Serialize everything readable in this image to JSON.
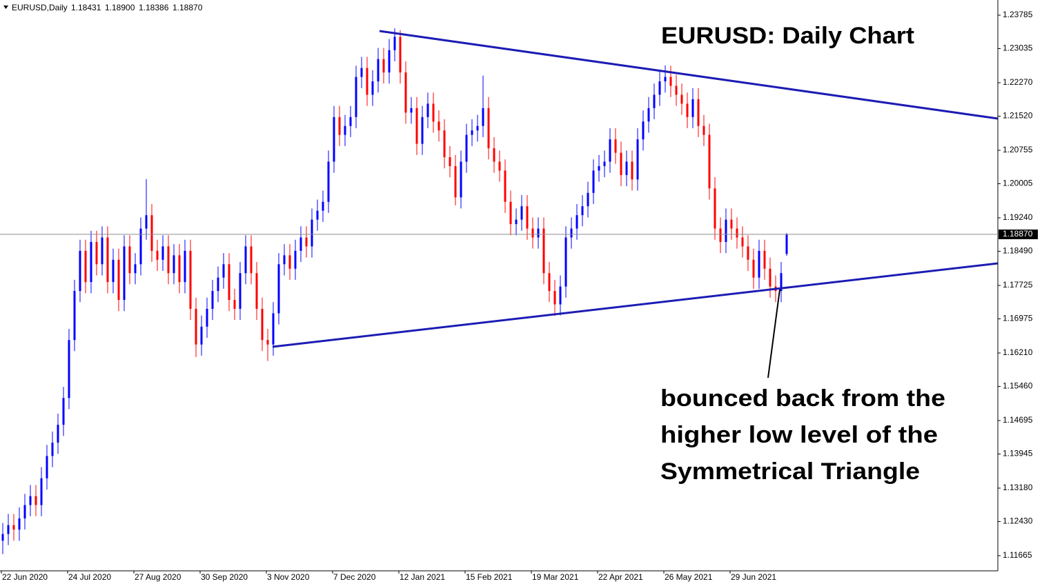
{
  "chart_data": {
    "type": "candlestick",
    "title": "EURUSD: Daily Chart",
    "header": {
      "symbol": "EURUSD,Daily",
      "ohlc_labels": [
        "1.18431",
        "1.18900",
        "1.18386",
        "1.18870"
      ]
    },
    "annotation": [
      "bounced back from the",
      "higher low level of the",
      "Symmetrical Triangle"
    ],
    "up_color": "#0000ff",
    "down_color": "#ff0000",
    "grid": false,
    "categories": [
      "22 Jun 2020",
      null,
      null,
      null,
      null,
      null,
      null,
      null,
      null,
      null,
      null,
      null,
      "24 Jul 2020",
      null,
      null,
      null,
      null,
      null,
      null,
      null,
      null,
      null,
      null,
      null,
      "27 Aug 2020",
      null,
      null,
      null,
      null,
      null,
      null,
      null,
      null,
      null,
      null,
      null,
      "30 Sep 2020",
      null,
      null,
      null,
      null,
      null,
      null,
      null,
      null,
      null,
      null,
      null,
      "3 Nov 2020",
      null,
      null,
      null,
      null,
      null,
      null,
      null,
      null,
      null,
      null,
      null,
      "7 Dec 2020",
      null,
      null,
      null,
      null,
      null,
      null,
      null,
      null,
      null,
      null,
      null,
      "12 Jan 2021",
      null,
      null,
      null,
      null,
      null,
      null,
      null,
      null,
      null,
      null,
      null,
      "15 Feb 2021",
      null,
      null,
      null,
      null,
      null,
      null,
      null,
      null,
      null,
      null,
      null,
      "19 Mar 2021",
      null,
      null,
      null,
      null,
      null,
      null,
      null,
      null,
      null,
      null,
      null,
      "22 Apr 2021",
      null,
      null,
      null,
      null,
      null,
      null,
      null,
      null,
      null,
      null,
      null,
      "26 May 2021",
      null,
      null,
      null,
      null,
      null,
      null,
      null,
      null,
      null,
      null,
      null,
      "29 Jun 2021",
      null,
      null,
      null,
      null,
      null,
      null,
      null,
      null,
      null,
      null
    ],
    "open": [
      1.12,
      1.1215,
      1.1235,
      1.1225,
      1.125,
      1.128,
      1.13,
      1.128,
      1.134,
      1.139,
      1.142,
      1.146,
      1.152,
      1.165,
      1.176,
      1.185,
      1.178,
      1.187,
      1.182,
      1.188,
      1.178,
      1.183,
      1.174,
      1.186,
      1.18,
      1.182,
      1.19,
      1.193,
      1.185,
      1.183,
      1.186,
      1.18,
      1.184,
      1.178,
      1.185,
      1.172,
      1.164,
      1.168,
      1.172,
      1.176,
      1.179,
      1.182,
      1.174,
      1.172,
      1.18,
      1.186,
      1.18,
      1.172,
      1.165,
      1.164,
      1.171,
      1.182,
      1.184,
      1.181,
      1.185,
      1.188,
      1.186,
      1.192,
      1.194,
      1.196,
      1.205,
      1.215,
      1.211,
      1.213,
      1.215,
      1.224,
      1.226,
      1.22,
      1.223,
      1.228,
      1.225,
      1.23,
      1.233,
      1.225,
      1.216,
      1.217,
      1.209,
      1.215,
      1.218,
      1.214,
      1.212,
      1.206,
      1.204,
      1.197,
      1.205,
      1.211,
      1.212,
      1.213,
      1.217,
      1.208,
      1.205,
      1.203,
      1.196,
      1.191,
      1.192,
      1.195,
      1.19,
      1.188,
      1.19,
      1.18,
      1.176,
      1.173,
      1.177,
      1.188,
      1.19,
      1.193,
      1.195,
      1.198,
      1.203,
      1.204,
      1.205,
      1.21,
      1.207,
      1.202,
      1.205,
      1.201,
      1.21,
      1.214,
      1.217,
      1.22,
      1.223,
      1.224,
      1.222,
      1.22,
      1.218,
      1.215,
      1.219,
      1.213,
      1.211,
      1.199,
      1.19,
      1.187,
      1.192,
      1.19,
      1.188,
      1.186,
      1.183,
      1.179,
      1.185,
      1.181,
      1.177,
      1.176,
      1.18431
    ],
    "high": [
      1.124,
      1.126,
      1.126,
      1.1275,
      1.1305,
      1.1325,
      1.1325,
      1.1365,
      1.1415,
      1.1445,
      1.1485,
      1.1545,
      1.1675,
      1.1785,
      1.1875,
      1.1875,
      1.1895,
      1.1895,
      1.1905,
      1.1905,
      1.1855,
      1.1855,
      1.1885,
      1.1885,
      1.1845,
      1.1925,
      1.2011,
      1.1955,
      1.1875,
      1.1885,
      1.1885,
      1.1865,
      1.1865,
      1.1875,
      1.1875,
      1.1745,
      1.1705,
      1.1745,
      1.1785,
      1.1815,
      1.1845,
      1.1845,
      1.1765,
      1.1825,
      1.1885,
      1.1885,
      1.1825,
      1.1745,
      1.1675,
      1.1735,
      1.1845,
      1.1865,
      1.1865,
      1.1875,
      1.1905,
      1.1905,
      1.1945,
      1.1965,
      1.1985,
      1.2075,
      1.2175,
      1.2175,
      1.2155,
      1.2175,
      1.2265,
      1.2285,
      1.2285,
      1.2255,
      1.2305,
      1.2305,
      1.2325,
      1.2349,
      1.2345,
      1.2275,
      1.2195,
      1.2195,
      1.2175,
      1.2205,
      1.2205,
      1.2165,
      1.2145,
      1.2085,
      1.2065,
      1.2075,
      1.2135,
      1.2145,
      1.2155,
      1.2243,
      1.2195,
      1.2105,
      1.2075,
      1.2055,
      1.1985,
      1.1945,
      1.1975,
      1.1975,
      1.1925,
      1.1925,
      1.1925,
      1.1825,
      1.1785,
      1.1795,
      1.1905,
      1.1925,
      1.1955,
      1.1975,
      1.2005,
      1.2055,
      1.2065,
      1.2075,
      1.2125,
      1.2125,
      1.2095,
      1.2075,
      1.2075,
      1.2125,
      1.2165,
      1.2195,
      1.2225,
      1.2255,
      1.2266,
      1.2265,
      1.2245,
      1.2225,
      1.2205,
      1.2215,
      1.2215,
      1.2155,
      1.2135,
      1.2015,
      1.1925,
      1.1945,
      1.1945,
      1.1925,
      1.1905,
      1.1885,
      1.1855,
      1.1875,
      1.1875,
      1.1835,
      1.1795,
      1.1825,
      1.189
    ],
    "low": [
      1.117,
      1.119,
      1.12,
      1.12,
      1.1225,
      1.1255,
      1.1255,
      1.1255,
      1.1315,
      1.1365,
      1.1395,
      1.1435,
      1.1495,
      1.1625,
      1.1735,
      1.1755,
      1.1755,
      1.1795,
      1.1795,
      1.1755,
      1.1755,
      1.1715,
      1.1715,
      1.1775,
      1.1775,
      1.1795,
      1.1875,
      1.1825,
      1.1805,
      1.1805,
      1.1775,
      1.1775,
      1.1755,
      1.1755,
      1.1695,
      1.1612,
      1.1615,
      1.1655,
      1.1695,
      1.1735,
      1.1765,
      1.1715,
      1.1695,
      1.1695,
      1.1775,
      1.1775,
      1.1695,
      1.1625,
      1.1603,
      1.1615,
      1.1685,
      1.1795,
      1.1785,
      1.1785,
      1.1825,
      1.1835,
      1.1835,
      1.1895,
      1.1915,
      1.1935,
      1.2025,
      1.2085,
      1.2085,
      1.2105,
      1.2125,
      1.2215,
      1.2175,
      1.2175,
      1.2205,
      1.2225,
      1.2225,
      1.2275,
      1.2225,
      1.2135,
      1.2135,
      1.2065,
      1.2065,
      1.2125,
      1.2115,
      1.2095,
      1.2035,
      1.2015,
      1.1952,
      1.1945,
      1.2025,
      1.2085,
      1.2095,
      1.2105,
      1.2055,
      1.2025,
      1.2005,
      1.1935,
      1.1885,
      1.1885,
      1.1895,
      1.1875,
      1.1855,
      1.1855,
      1.1775,
      1.1735,
      1.1704,
      1.1705,
      1.1745,
      1.1855,
      1.1875,
      1.1905,
      1.1925,
      1.1955,
      1.2005,
      1.2015,
      1.2025,
      1.2045,
      1.1995,
      1.1995,
      1.1985,
      1.1985,
      1.2075,
      1.2115,
      1.2145,
      1.2175,
      1.2205,
      1.2195,
      1.2175,
      1.2155,
      1.2125,
      1.2125,
      1.2105,
      1.2085,
      1.1965,
      1.1875,
      1.1845,
      1.1845,
      1.1875,
      1.1855,
      1.1835,
      1.1805,
      1.1765,
      1.1765,
      1.1785,
      1.1745,
      1.1735,
      1.1735,
      1.18386
    ],
    "close": [
      1.1215,
      1.1235,
      1.1225,
      1.125,
      1.128,
      1.13,
      1.128,
      1.134,
      1.139,
      1.142,
      1.146,
      1.152,
      1.165,
      1.176,
      1.185,
      1.178,
      1.187,
      1.182,
      1.188,
      1.178,
      1.183,
      1.174,
      1.186,
      1.18,
      1.182,
      1.19,
      1.193,
      1.185,
      1.183,
      1.186,
      1.18,
      1.184,
      1.178,
      1.185,
      1.172,
      1.164,
      1.168,
      1.172,
      1.176,
      1.179,
      1.182,
      1.174,
      1.172,
      1.18,
      1.186,
      1.18,
      1.172,
      1.165,
      1.164,
      1.171,
      1.182,
      1.184,
      1.181,
      1.185,
      1.188,
      1.186,
      1.192,
      1.194,
      1.196,
      1.205,
      1.215,
      1.211,
      1.213,
      1.215,
      1.224,
      1.226,
      1.22,
      1.223,
      1.228,
      1.225,
      1.23,
      1.233,
      1.225,
      1.216,
      1.217,
      1.209,
      1.215,
      1.218,
      1.214,
      1.212,
      1.206,
      1.204,
      1.197,
      1.205,
      1.211,
      1.212,
      1.213,
      1.217,
      1.208,
      1.205,
      1.203,
      1.196,
      1.191,
      1.192,
      1.195,
      1.19,
      1.188,
      1.19,
      1.18,
      1.176,
      1.173,
      1.177,
      1.188,
      1.19,
      1.193,
      1.195,
      1.198,
      1.203,
      1.204,
      1.205,
      1.21,
      1.207,
      1.202,
      1.205,
      1.201,
      1.21,
      1.214,
      1.217,
      1.22,
      1.223,
      1.224,
      1.222,
      1.22,
      1.218,
      1.215,
      1.219,
      1.213,
      1.211,
      1.199,
      1.19,
      1.187,
      1.192,
      1.19,
      1.188,
      1.186,
      1.183,
      1.179,
      1.185,
      1.181,
      1.177,
      1.176,
      1.18,
      1.1887
    ],
    "last_price": {
      "value": 1.1887,
      "label": "1.18870"
    },
    "ylim": [
      1.11325,
      1.24125
    ],
    "yticks": [
      1.23785,
      1.23035,
      {
        "value": 1.2227,
        "label": "1.22270"
      },
      {
        "value": 1.2152,
        "label": "1.21520"
      },
      1.20755,
      1.20005,
      {
        "value": 1.1924,
        "label": "1.19240"
      },
      {
        "value": 1.1849,
        "label": "1.18490"
      },
      1.17725,
      1.16975,
      {
        "value": 1.1621,
        "label": "1.16210"
      },
      {
        "value": 1.1546,
        "label": "1.15460"
      },
      1.14695,
      1.13945,
      {
        "value": 1.1318,
        "label": "1.13180"
      },
      {
        "value": 1.1243,
        "label": "1.12430"
      },
      1.11665
    ]
  }
}
